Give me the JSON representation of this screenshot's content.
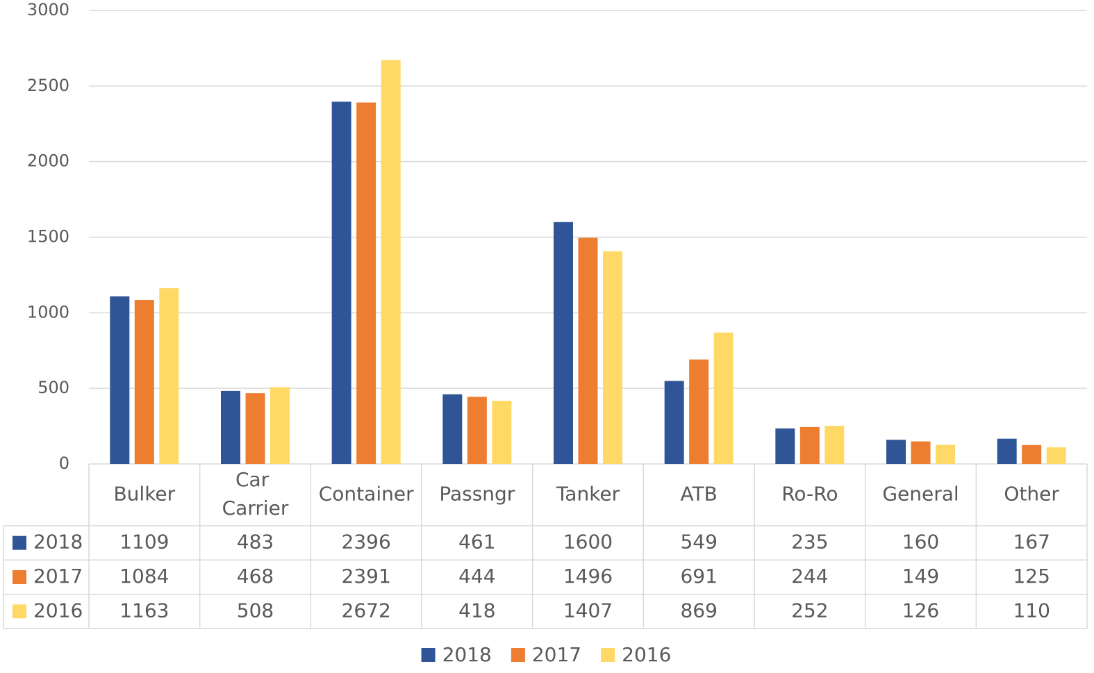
{
  "chart_data": {
    "type": "bar",
    "categories": [
      "Bulker",
      "Car Carrier",
      "Container",
      "Passngr",
      "Tanker",
      "ATB",
      "Ro-Ro",
      "General",
      "Other"
    ],
    "series": [
      {
        "name": "2018",
        "color": "#2f5597",
        "values": [
          1109,
          483,
          2396,
          461,
          1600,
          549,
          235,
          160,
          167
        ]
      },
      {
        "name": "2017",
        "color": "#ed7d31",
        "values": [
          1084,
          468,
          2391,
          444,
          1496,
          691,
          244,
          149,
          125
        ]
      },
      {
        "name": "2016",
        "color": "#ffd966",
        "values": [
          1163,
          508,
          2672,
          418,
          1407,
          869,
          252,
          126,
          110
        ]
      }
    ],
    "ylim": [
      0,
      3000
    ],
    "yticks": [
      0,
      500,
      1000,
      1500,
      2000,
      2500,
      3000
    ],
    "grid": true,
    "legend": "bottom",
    "data_table": true
  }
}
